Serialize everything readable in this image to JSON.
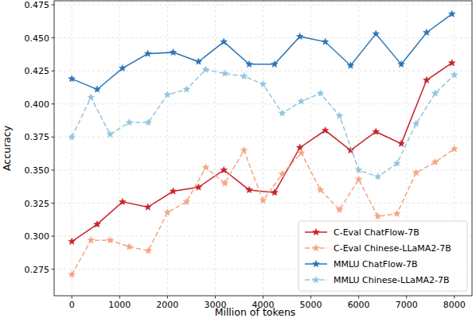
{
  "chart_data": {
    "type": "line",
    "x_label": "Million of tokens",
    "y_label": "Accuracy",
    "xlim": [
      -370,
      8370
    ],
    "ylim": [
      0.255,
      0.478
    ],
    "xticks": [
      0,
      1000,
      2000,
      3000,
      4000,
      5000,
      6000,
      7000,
      8000
    ],
    "yticks": [
      0.275,
      {
        "value": 0.3,
        "label": "0.300"
      },
      0.325,
      {
        "value": 0.35,
        "label": "0.350"
      },
      0.375,
      {
        "value": 0.4,
        "label": "0.400"
      },
      0.425,
      {
        "value": 0.45,
        "label": "0.450"
      },
      0.475
    ],
    "grid": true,
    "legend": "lower right",
    "series": [
      {
        "name": "C-Eval ChatFlow-7B",
        "color": "#c8232c",
        "line_style": "solid",
        "marker": "star",
        "x": [
          0,
          530,
          1060,
          1590,
          2120,
          2650,
          3180,
          3710,
          4240,
          4770,
          5300,
          5830,
          6360,
          6890,
          7420,
          7950
        ],
        "values": [
          0.296,
          0.309,
          0.326,
          0.322,
          0.334,
          0.337,
          0.35,
          0.335,
          0.333,
          0.367,
          0.38,
          0.365,
          0.379,
          0.37,
          0.418,
          0.431
        ]
      },
      {
        "name": "C-Eval Chinese-LLaMA2-7B",
        "color": "#f4a582",
        "line_style": "dashed",
        "marker": "star",
        "x": [
          0,
          400,
          800,
          1200,
          1600,
          2000,
          2400,
          2800,
          3200,
          3600,
          4000,
          4400,
          4800,
          5200,
          5600,
          6000,
          6400,
          6800,
          7200,
          7600,
          8000
        ],
        "values": [
          0.271,
          0.297,
          0.297,
          0.292,
          0.289,
          0.318,
          0.326,
          0.352,
          0.34,
          0.365,
          0.327,
          0.347,
          0.363,
          0.335,
          0.32,
          0.343,
          0.315,
          0.317,
          0.348,
          0.356,
          0.366
        ]
      },
      {
        "name": "MMLU ChatFlow-7B",
        "color": "#2b75b6",
        "line_style": "solid",
        "marker": "star",
        "x": [
          0,
          530,
          1060,
          1590,
          2120,
          2650,
          3180,
          3710,
          4240,
          4770,
          5300,
          5830,
          6360,
          6890,
          7420,
          7950
        ],
        "values": [
          0.419,
          0.411,
          0.427,
          0.438,
          0.439,
          0.432,
          0.447,
          0.43,
          0.43,
          0.451,
          0.447,
          0.429,
          0.453,
          0.43,
          0.454,
          0.468
        ]
      },
      {
        "name": "MMLU Chinese-LLaMA2-7B",
        "color": "#92c5de",
        "line_style": "dashed",
        "marker": "star",
        "x": [
          0,
          400,
          800,
          1200,
          1600,
          2000,
          2400,
          2800,
          3200,
          3600,
          4000,
          4400,
          4800,
          5200,
          5600,
          6000,
          6400,
          6800,
          7200,
          7600,
          8000
        ],
        "values": [
          0.375,
          0.405,
          0.377,
          0.386,
          0.386,
          0.407,
          0.411,
          0.426,
          0.423,
          0.421,
          0.415,
          0.393,
          0.402,
          0.408,
          0.391,
          0.35,
          0.345,
          0.355,
          0.385,
          0.408,
          0.422
        ]
      }
    ]
  }
}
